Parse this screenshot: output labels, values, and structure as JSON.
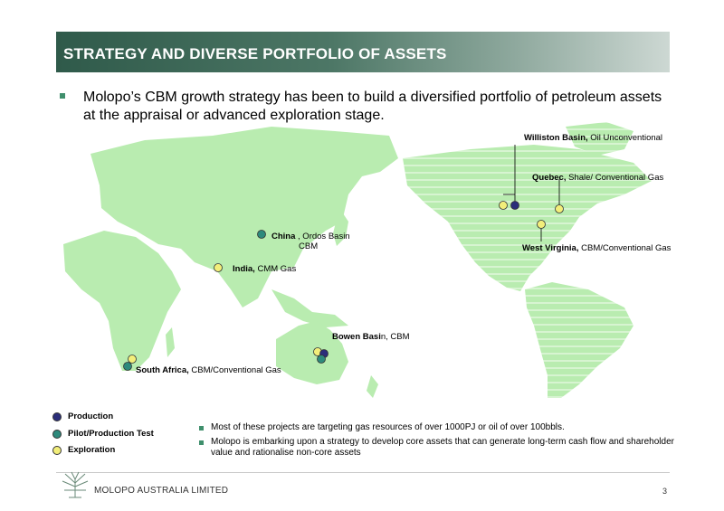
{
  "header": {
    "title": "STRATEGY AND DIVERSE PORTFOLIO OF ASSETS"
  },
  "intro": "Molopo’s CBM growth strategy has been to build a diversified portfolio of petroleum assets at the appraisal or advanced exploration stage.",
  "locations": {
    "williston": {
      "bold": "Williston Basin,",
      "rest": " Oil Unconventional",
      "status": "Production"
    },
    "quebec": {
      "bold": "Quebec,",
      "rest": " Shale/ Conventional Gas",
      "status": "Exploration"
    },
    "west_virginia": {
      "bold": "West Virginia,",
      "rest": " CBM/Conventional Gas",
      "status": "Exploration"
    },
    "china": {
      "bold": "China",
      "rest": " , Ordos Basin",
      "line2": "CBM",
      "status": "Pilot/Production Test"
    },
    "india": {
      "bold": "India,",
      "rest": " CMM Gas",
      "status": "Exploration"
    },
    "bowen": {
      "bold": "Bowen Basi",
      "rest": "n, CBM",
      "status": "Production"
    },
    "south_africa": {
      "bold": "South Africa,",
      "rest": " CBM/Conventional Gas",
      "status": "Exploration"
    }
  },
  "legend": [
    {
      "label": "Production",
      "color": "#2b2e7a"
    },
    {
      "label": "Pilot/Production Test",
      "color": "#2e8a7c"
    },
    {
      "label": "Exploration",
      "color": "#f2ee7a"
    }
  ],
  "notes": [
    "Most of these projects are targeting gas resources of over 1000PJ or oil of over 100bbls.",
    "Molopo is embarking upon a strategy to develop core assets that can generate long-term cash flow and shareholder value and rationalise non-core assets"
  ],
  "footer": {
    "company": "MOLOPO AUSTRALIA LIMITED",
    "page": "3"
  },
  "colors": {
    "land": "#b9ecb0",
    "production": "#2b2e7a",
    "pilot": "#2e8a7c",
    "exploration": "#f2ee7a"
  }
}
